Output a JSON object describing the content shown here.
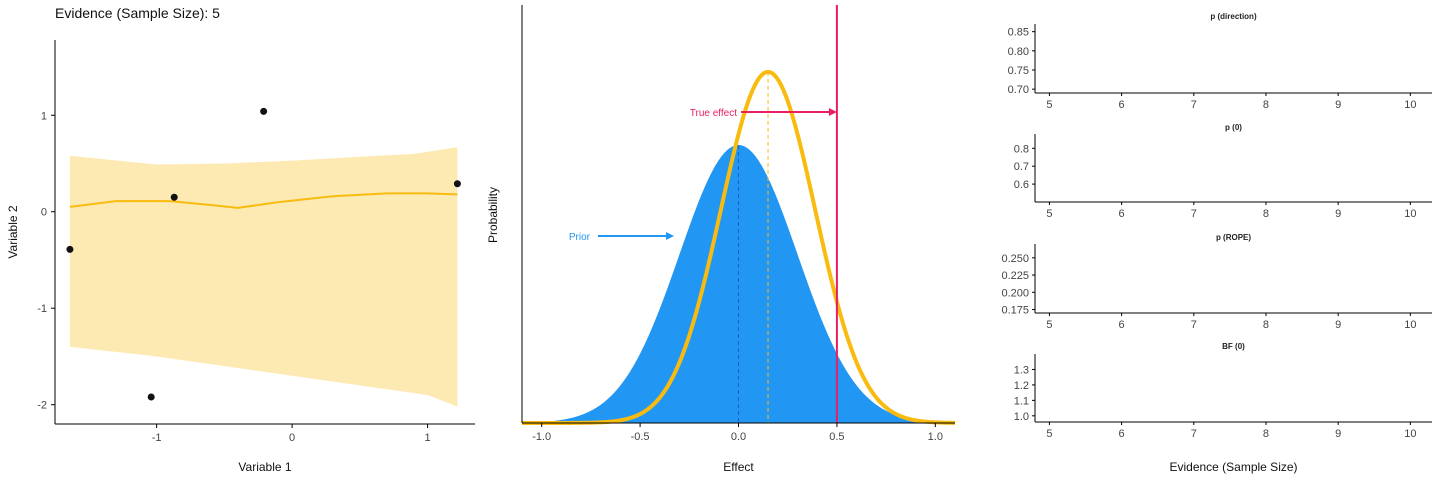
{
  "title": "Evidence (Sample Size): 5",
  "colors": {
    "band": "#fdeab3",
    "line": "#f9bb0f",
    "prior": "#2196f3",
    "true_effect": "#e91e63",
    "axis": "#000000",
    "tick": "#444444"
  },
  "chart_data": [
    {
      "id": "scatter",
      "type": "scatter",
      "xlabel": "Variable 1",
      "ylabel": "Variable 2",
      "xlim": [
        -1.75,
        1.35
      ],
      "ylim": [
        -2.2,
        1.78
      ],
      "xticks": [
        -1,
        0,
        1
      ],
      "yticks": [
        -2,
        -1,
        0,
        1
      ],
      "points": [
        {
          "x": -1.64,
          "y": -0.39
        },
        {
          "x": -1.04,
          "y": -1.92
        },
        {
          "x": -0.87,
          "y": 0.15
        },
        {
          "x": -0.21,
          "y": 1.04
        },
        {
          "x": 1.22,
          "y": 0.29
        }
      ],
      "fit_line": [
        {
          "x": -1.64,
          "y": 0.05
        },
        {
          "x": -1.3,
          "y": 0.11
        },
        {
          "x": -0.9,
          "y": 0.11
        },
        {
          "x": -0.6,
          "y": 0.07
        },
        {
          "x": -0.4,
          "y": 0.04
        },
        {
          "x": -0.1,
          "y": 0.1
        },
        {
          "x": 0.3,
          "y": 0.16
        },
        {
          "x": 0.7,
          "y": 0.19
        },
        {
          "x": 1.0,
          "y": 0.19
        },
        {
          "x": 1.22,
          "y": 0.18
        }
      ],
      "band_upper": [
        {
          "x": -1.64,
          "y": 0.58
        },
        {
          "x": -1.0,
          "y": 0.49
        },
        {
          "x": -0.5,
          "y": 0.5
        },
        {
          "x": 0.0,
          "y": 0.53
        },
        {
          "x": 0.5,
          "y": 0.57
        },
        {
          "x": 0.9,
          "y": 0.6
        },
        {
          "x": 1.22,
          "y": 0.67
        }
      ],
      "band_lower": [
        {
          "x": -1.64,
          "y": -1.4
        },
        {
          "x": -1.0,
          "y": -1.5
        },
        {
          "x": -0.5,
          "y": -1.6
        },
        {
          "x": 0.0,
          "y": -1.7
        },
        {
          "x": 0.5,
          "y": -1.8
        },
        {
          "x": 1.0,
          "y": -1.9
        },
        {
          "x": 1.22,
          "y": -2.02
        }
      ]
    },
    {
      "id": "density",
      "type": "area",
      "xlabel": "Effect",
      "ylabel": "Probability",
      "xlim": [
        -1.1,
        1.1
      ],
      "ylim": [
        0,
        2.0
      ],
      "xticks": [
        -1.0,
        -0.5,
        0.0,
        0.5,
        1.0
      ],
      "xtick_labels": [
        "-1.0",
        "-0.5",
        "0.0",
        "0.5",
        "1.0"
      ],
      "prior": {
        "label": "Prior",
        "mean": 0.0,
        "sd": 0.3,
        "peak": 1.33
      },
      "posterior": {
        "mean": 0.15,
        "sd": 0.24,
        "peak": 1.68,
        "peak_x": 0.15
      },
      "true_effect": {
        "label": "True effect",
        "x": 0.5
      }
    },
    {
      "id": "p_direction",
      "type": "line",
      "title": "p (direction)",
      "xlabel": "",
      "xlim": [
        4.8,
        10.3
      ],
      "xticks": [
        5,
        6,
        7,
        8,
        9,
        10
      ],
      "ylim": [
        0.69,
        0.87
      ],
      "yticks": [
        0.7,
        0.75,
        0.8,
        0.85
      ],
      "ytick_labels": [
        "0.70",
        "0.75",
        "0.80",
        "0.85"
      ]
    },
    {
      "id": "p_zero",
      "type": "line",
      "title": "p (0)",
      "xlabel": "",
      "xlim": [
        4.8,
        10.3
      ],
      "xticks": [
        5,
        6,
        7,
        8,
        9,
        10
      ],
      "ylim": [
        0.5,
        0.88
      ],
      "yticks": [
        0.6,
        0.7,
        0.8
      ],
      "ytick_labels": [
        "0.6",
        "0.7",
        "0.8"
      ]
    },
    {
      "id": "p_rope",
      "type": "line",
      "title": "p (ROPE)",
      "xlabel": "",
      "xlim": [
        4.8,
        10.3
      ],
      "xticks": [
        5,
        6,
        7,
        8,
        9,
        10
      ],
      "ylim": [
        0.17,
        0.27
      ],
      "yticks": [
        0.175,
        0.2,
        0.225,
        0.25
      ],
      "ytick_labels": [
        "0.175",
        "0.200",
        "0.225",
        "0.250"
      ]
    },
    {
      "id": "bf_zero",
      "type": "line",
      "title": "BF (0)",
      "xlabel": "Evidence (Sample Size)",
      "xlim": [
        4.8,
        10.3
      ],
      "xticks": [
        5,
        6,
        7,
        8,
        9,
        10
      ],
      "ylim": [
        0.96,
        1.4
      ],
      "yticks": [
        1.0,
        1.1,
        1.2,
        1.3
      ],
      "ytick_labels": [
        "1.0",
        "1.1",
        "1.2",
        "1.3"
      ]
    }
  ]
}
